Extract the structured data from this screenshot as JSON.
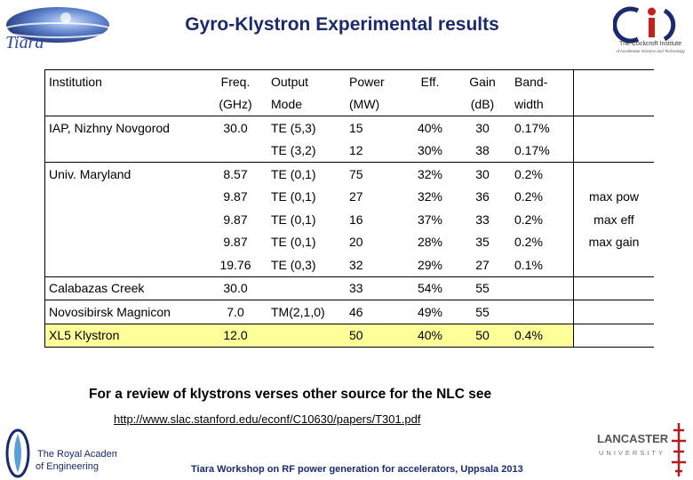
{
  "header": {
    "title": "Gyro-Klystron Experimental results",
    "logo_left": "Tiara",
    "logo_right_line1": "The Cockcroft Institute",
    "logo_right_line2": "of Accelerator Science and Technology"
  },
  "table": {
    "headers": [
      [
        "Institution",
        "Freq.",
        "Output",
        "Power",
        "Eff.",
        "Gain",
        "Band-",
        ""
      ],
      [
        "",
        "(GHz)",
        "Mode",
        "(MW)",
        "",
        "(dB)",
        "width",
        ""
      ]
    ],
    "rows": [
      [
        "IAP, Nizhny Novgorod",
        "30.0",
        "TE (5,3)",
        "15",
        "40%",
        "30",
        "0.17%",
        ""
      ],
      [
        "",
        "",
        "TE (3,2)",
        "12",
        "30%",
        "38",
        "0.17%",
        ""
      ],
      [
        "Univ. Maryland",
        "8.57",
        "TE (0,1)",
        "75",
        "32%",
        "30",
        "0.2%",
        ""
      ],
      [
        "",
        "9.87",
        "TE (0,1)",
        "27",
        "32%",
        "36",
        "0.2%",
        "max pow"
      ],
      [
        "",
        "9.87",
        "TE (0,1)",
        "16",
        "37%",
        "33",
        "0.2%",
        "max eff"
      ],
      [
        "",
        "9.87",
        "TE (0,1)",
        "20",
        "28%",
        "35",
        "0.2%",
        "max gain"
      ],
      [
        "",
        "19.76",
        "TE (0,3)",
        "32",
        "29%",
        "27",
        "0.1%",
        ""
      ],
      [
        "Calabazas Creek",
        "30.0",
        "",
        "33",
        "54%",
        "55",
        "",
        ""
      ],
      [
        "Novosibirsk Magnicon",
        "7.0",
        "TM(2,1,0)",
        "46",
        "49%",
        "55",
        "",
        ""
      ],
      [
        "XL5 Klystron",
        "12.0",
        "",
        "50",
        "40%",
        "50",
        "0.4%",
        ""
      ]
    ]
  },
  "review": {
    "text": "For a review of klystrons verses other source for the NLC see",
    "link": "http://www.slac.stanford.edu/econf/C10630/papers/T301.pdf"
  },
  "footer": {
    "text": "Tiara Workshop on RF power generation for accelerators, Uppsala 2013",
    "royal_academy_line1": "The Royal Academy",
    "royal_academy_line2": "of Engineering",
    "lancaster_line1": "LANCASTER",
    "lancaster_line2": "UNIVERSITY"
  },
  "colors": {
    "title": "#1a2a6c",
    "highlight_row": "#ffff99"
  }
}
